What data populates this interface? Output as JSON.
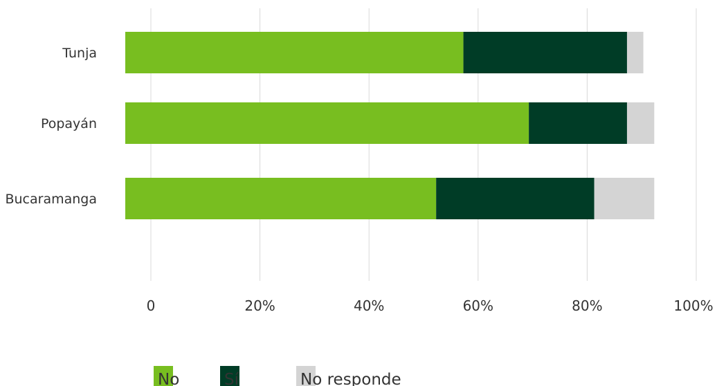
{
  "chart_data": {
    "type": "bar",
    "orientation": "horizontal",
    "stacked": true,
    "categories": [
      "Tunja",
      "Popayán",
      "Bucaramanga"
    ],
    "series": [
      {
        "name": "No",
        "values": [
          62,
          74,
          57
        ],
        "color": "#78BE20"
      },
      {
        "name": "Sí",
        "values": [
          30,
          18,
          29
        ],
        "color": "#003C26"
      },
      {
        "name": "No responde",
        "values": [
          3,
          5,
          11
        ],
        "color": "#D4D4D4"
      }
    ],
    "xlim": [
      0,
      100
    ],
    "xticks": [
      0,
      20,
      40,
      60,
      80,
      100
    ],
    "xtick_labels": [
      "0",
      "20%",
      "40%",
      "60%",
      "80%",
      "100%"
    ],
    "grid": "vertical",
    "legend_position": "bottom"
  }
}
